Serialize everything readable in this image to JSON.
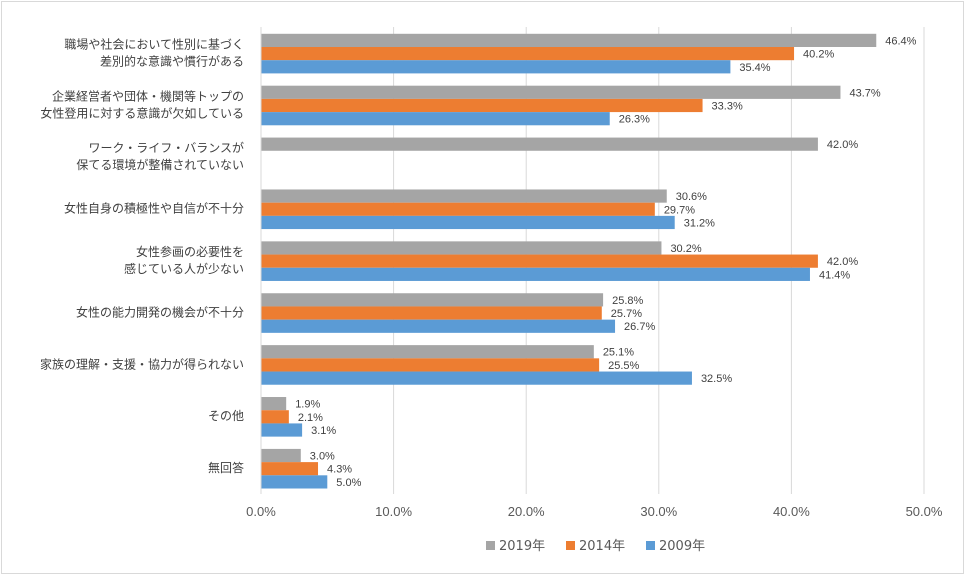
{
  "chart_data": {
    "type": "bar",
    "orientation": "horizontal",
    "categories": [
      [
        "職場や社会において性別に基づく",
        "差別的な意識や慣行がある"
      ],
      [
        "企業経営者や団体・機関等トップの",
        "女性登用に対する意識が欠如している"
      ],
      [
        "ワーク・ライフ・バランスが",
        "保てる環境が整備されていない"
      ],
      [
        "女性自身の積極性や自信が不十分"
      ],
      [
        "女性参画の必要性を",
        "感じている人が少ない"
      ],
      [
        "女性の能力開発の機会が不十分"
      ],
      [
        "家族の理解・支援・協力が得られない"
      ],
      [
        "その他"
      ],
      [
        "無回答"
      ]
    ],
    "series": [
      {
        "name": "2019年",
        "color": "#a5a5a5",
        "values": [
          46.4,
          43.7,
          42.0,
          30.6,
          30.2,
          25.8,
          25.1,
          1.9,
          3.0
        ]
      },
      {
        "name": "2014年",
        "color": "#ed7d31",
        "values": [
          40.2,
          33.3,
          null,
          29.7,
          42.0,
          25.7,
          25.5,
          2.1,
          4.3
        ]
      },
      {
        "name": "2009年",
        "color": "#5b9bd5",
        "values": [
          35.4,
          26.3,
          null,
          31.2,
          41.4,
          26.7,
          32.5,
          3.1,
          5.0
        ]
      }
    ],
    "xlim": [
      0,
      50
    ],
    "xticks": [
      "0.0%",
      "10.0%",
      "20.0%",
      "30.0%",
      "40.0%",
      "50.0%"
    ],
    "value_suffix": "%",
    "grid": true,
    "legend_position": "bottom"
  }
}
